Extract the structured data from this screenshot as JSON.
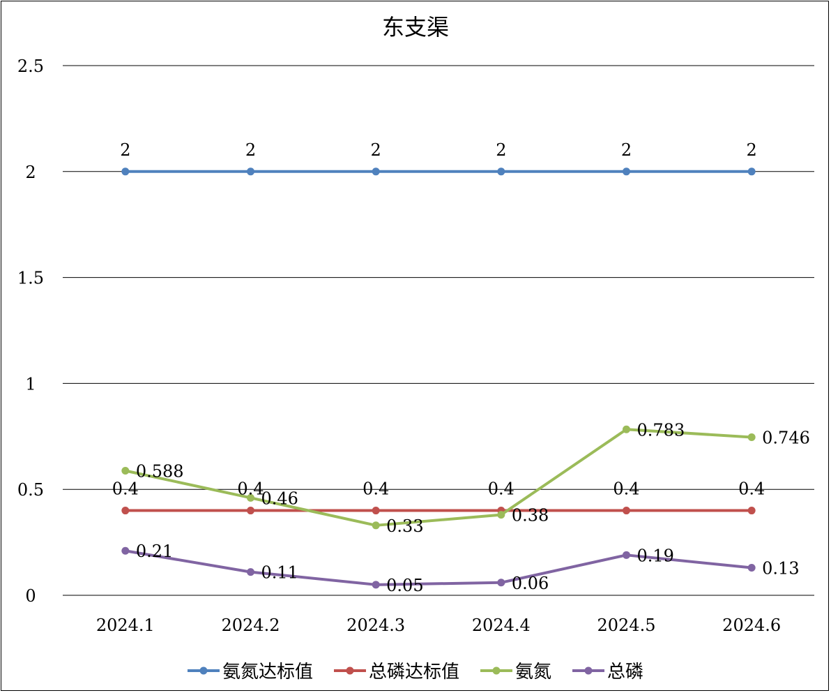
{
  "chart_data": {
    "type": "line",
    "title": "东支渠",
    "categories": [
      "2024.1",
      "2024.2",
      "2024.3",
      "2024.4",
      "2024.5",
      "2024.6"
    ],
    "ylim": [
      0,
      2.5
    ],
    "y_ticks": [
      "0",
      "0.5",
      "1",
      "1.5",
      "2",
      "2.5"
    ],
    "y_tick_values": [
      0,
      0.5,
      1,
      1.5,
      2,
      2.5
    ],
    "grid": true,
    "legend_position": "bottom",
    "series": [
      {
        "name": "氨氮达标值",
        "color": "#4f81bd",
        "values": [
          2,
          2,
          2,
          2,
          2,
          2
        ],
        "labels": [
          "2",
          "2",
          "2",
          "2",
          "2",
          "2"
        ],
        "label_position": "above"
      },
      {
        "name": "总磷达标值",
        "color": "#c0504d",
        "values": [
          0.4,
          0.4,
          0.4,
          0.4,
          0.4,
          0.4
        ],
        "labels": [
          "0.4",
          "0.4",
          "0.4",
          "0.4",
          "0.4",
          "0.4"
        ],
        "label_position": "above"
      },
      {
        "name": "氨氮",
        "color": "#9bbb59",
        "values": [
          0.588,
          0.46,
          0.33,
          0.38,
          0.783,
          0.746
        ],
        "labels": [
          "0.588",
          "0.46",
          "0.33",
          "0.38",
          "0.783",
          "0.746"
        ],
        "label_position": "right"
      },
      {
        "name": "总磷",
        "color": "#8064a2",
        "values": [
          0.21,
          0.11,
          0.05,
          0.06,
          0.19,
          0.13
        ],
        "labels": [
          "0.21",
          "0.11",
          "0.05",
          "0.06",
          "0.19",
          "0.13"
        ],
        "label_position": "right"
      }
    ]
  }
}
